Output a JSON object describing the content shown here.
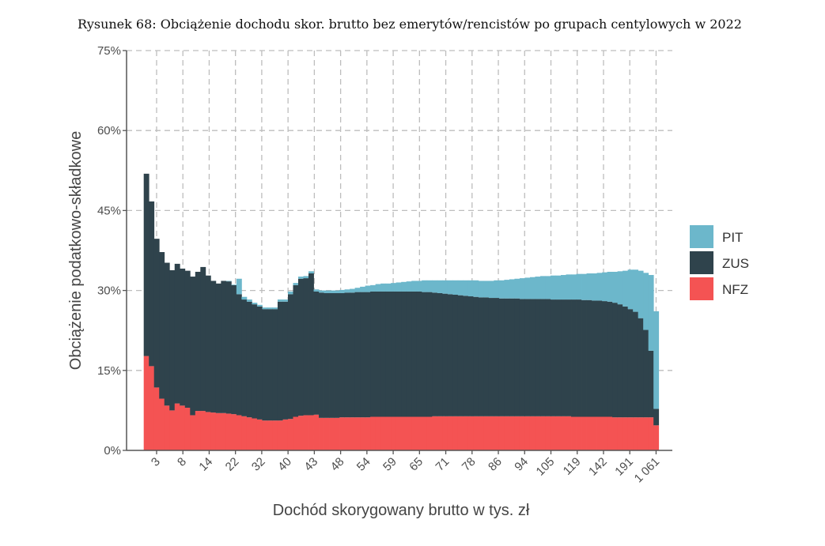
{
  "chart_data": {
    "type": "bar",
    "stacked": true,
    "title": "Rysunek 68: Obciążenie dochodu skor. brutto bez emerytów/rencistów po grupach centylowych w 2022",
    "xlabel": "Dochód skorygowany brutto w tys. zł",
    "ylabel": "Obciążenie podatkowo-składkowe",
    "ylim": [
      0,
      75
    ],
    "yticks": [
      0,
      15,
      30,
      45,
      60,
      75
    ],
    "ytick_labels": [
      "0%",
      "15%",
      "30%",
      "45%",
      "60%",
      "75%"
    ],
    "xtick_labels": [
      "3",
      "8",
      "14",
      "22",
      "32",
      "40",
      "43",
      "48",
      "54",
      "59",
      "65",
      "71",
      "78",
      "86",
      "94",
      "105",
      "119",
      "142",
      "191",
      "1 061"
    ],
    "grid": true,
    "legend_position": "right",
    "colors": {
      "PIT": "#6cb7cb",
      "ZUS": "#2f434c",
      "NFZ": "#f45353"
    },
    "legend": [
      "PIT",
      "ZUS",
      "NFZ"
    ],
    "series": [
      {
        "name": "NFZ",
        "values": [
          17.7,
          15.8,
          11.8,
          9.7,
          8.4,
          7.5,
          8.8,
          8.4,
          8.0,
          6.6,
          7.4,
          7.4,
          7.2,
          7.1,
          7.0,
          7.0,
          6.9,
          6.8,
          6.6,
          6.4,
          6.2,
          6.0,
          5.8,
          5.6,
          5.6,
          5.6,
          5.6,
          5.8,
          5.9,
          6.3,
          6.5,
          6.6,
          6.6,
          6.7,
          6.1,
          6.1,
          6.1,
          6.1,
          6.2,
          6.2,
          6.2,
          6.2,
          6.2,
          6.2,
          6.3,
          6.3,
          6.3,
          6.3,
          6.3,
          6.3,
          6.3,
          6.3,
          6.3,
          6.3,
          6.3,
          6.3,
          6.4,
          6.4,
          6.4,
          6.4,
          6.4,
          6.4,
          6.4,
          6.4,
          6.4,
          6.4,
          6.4,
          6.4,
          6.4,
          6.4,
          6.4,
          6.4,
          6.4,
          6.4,
          6.4,
          6.4,
          6.4,
          6.4,
          6.4,
          6.4,
          6.4,
          6.4,
          6.4,
          6.3,
          6.3,
          6.3,
          6.3,
          6.3,
          6.3,
          6.3,
          6.3,
          6.2,
          6.2,
          6.2,
          6.2,
          6.2,
          6.2,
          6.2,
          6.2,
          4.7
        ]
      },
      {
        "name": "ZUS",
        "values": [
          34.2,
          30.9,
          27.9,
          27.5,
          26.8,
          26.3,
          26.2,
          25.7,
          25.7,
          26.0,
          26.1,
          27.0,
          25.6,
          24.7,
          24.3,
          24.8,
          24.8,
          24.2,
          22.7,
          21.9,
          21.7,
          21.4,
          21.2,
          20.9,
          20.9,
          20.9,
          22.3,
          22.1,
          23.4,
          24.7,
          25.7,
          25.7,
          26.6,
          23.1,
          23.5,
          23.4,
          23.4,
          23.4,
          23.3,
          23.4,
          23.4,
          23.5,
          23.5,
          23.5,
          23.5,
          23.5,
          23.5,
          23.5,
          23.5,
          23.5,
          23.5,
          23.5,
          23.5,
          23.5,
          23.4,
          23.4,
          23.2,
          23.1,
          23.0,
          22.9,
          22.8,
          22.7,
          22.6,
          22.5,
          22.4,
          22.3,
          22.3,
          22.2,
          22.2,
          22.1,
          22.1,
          22.1,
          22.1,
          22.0,
          22.0,
          22.0,
          22.0,
          22.0,
          22.0,
          21.9,
          21.9,
          21.9,
          21.9,
          22.0,
          22.0,
          21.9,
          21.9,
          21.8,
          21.8,
          21.7,
          21.6,
          21.5,
          21.2,
          20.8,
          20.3,
          19.8,
          18.6,
          16.4,
          12.5,
          3.1
        ]
      },
      {
        "name": "PIT",
        "values": [
          0,
          0,
          0,
          0,
          0,
          0,
          0,
          0,
          0,
          0,
          0,
          0,
          0,
          0,
          0,
          0,
          0.1,
          0.1,
          2.9,
          0.5,
          0.4,
          0.3,
          0.3,
          0.3,
          0.3,
          0.3,
          0.4,
          0.4,
          0.5,
          0.4,
          0.4,
          0.4,
          0.4,
          0.4,
          0.4,
          0.5,
          0.5,
          0.5,
          0.6,
          0.6,
          0.7,
          0.8,
          1.0,
          1.2,
          1.2,
          1.4,
          1.5,
          1.5,
          1.6,
          1.7,
          1.8,
          1.9,
          2.0,
          2.0,
          2.2,
          2.2,
          2.3,
          2.4,
          2.5,
          2.6,
          2.7,
          2.8,
          2.9,
          3.0,
          3.1,
          3.1,
          3.1,
          3.2,
          3.3,
          3.4,
          3.5,
          3.6,
          3.7,
          3.9,
          4.0,
          4.1,
          4.2,
          4.3,
          4.3,
          4.5,
          4.5,
          4.6,
          4.7,
          4.7,
          4.8,
          4.9,
          5.0,
          5.1,
          5.2,
          5.4,
          5.6,
          5.8,
          6.2,
          6.7,
          7.4,
          7.9,
          8.9,
          10.7,
          14.2,
          18.3
        ]
      }
    ]
  }
}
